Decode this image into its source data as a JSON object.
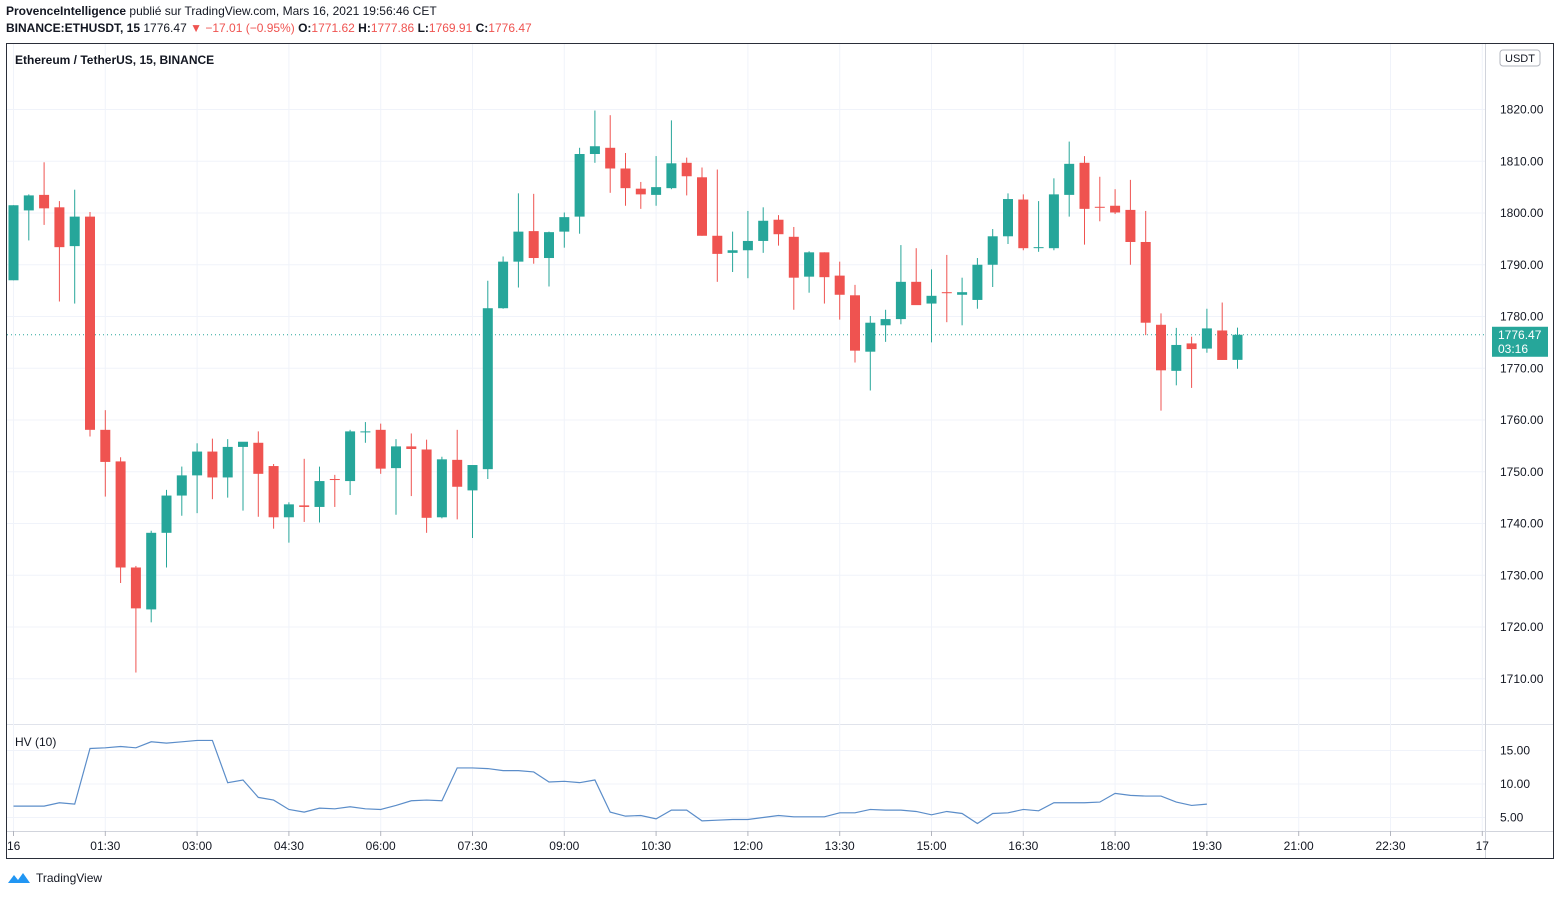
{
  "header": {
    "author": "ProvenceIntelligence",
    "published": "publié sur TradingView.com, Mars 16, 2021 19:56:46 CET",
    "symbol": "BINANCE:ETHUSDT, 15",
    "last": "1776.47",
    "change": "−17.01 (−0.95%)",
    "o_label": "O:",
    "o_val": "1771.62",
    "h_label": "H:",
    "h_val": "1777.86",
    "l_label": "L:",
    "l_val": "1769.91",
    "c_label": "C:",
    "c_val": "1776.47"
  },
  "chart": {
    "title": "Ethereum / TetherUS, 15, BINANCE",
    "currency_label": "USDT",
    "price_tag": "1776.47",
    "countdown": "03:16",
    "indicator_label": "HV (10)"
  },
  "footer": {
    "brand": "TradingView"
  },
  "colors": {
    "up": "#26a69a",
    "down": "#ef5350",
    "hv": "#5b8dc9",
    "grid": "#f0f3fa",
    "tag": "#26a69a"
  },
  "chart_data": {
    "type": "candlestick",
    "title": "Ethereum / TetherUS, 15, BINANCE",
    "price_axis_ticks": [
      1710,
      1720,
      1730,
      1740,
      1750,
      1760,
      1770,
      1780,
      1790,
      1800,
      1810,
      1820
    ],
    "price_axis_labels": [
      "1710.00",
      "1720.00",
      "1730.00",
      "1740.00",
      "1750.00",
      "1760.00",
      "1770.00",
      "1780.00",
      "1790.00",
      "1800.00",
      "1810.00",
      "1820.00"
    ],
    "time_axis_labels": [
      "16",
      "01:30",
      "03:00",
      "04:30",
      "06:00",
      "07:30",
      "09:00",
      "10:30",
      "12:00",
      "13:30",
      "15:00",
      "16:30",
      "18:00",
      "19:30",
      "21:00",
      "22:30",
      "17"
    ],
    "last_price": 1776.47,
    "candles": [
      [
        1787,
        1801.5,
        1787,
        1801.5
      ],
      [
        1800.5,
        1803.6,
        1794.7,
        1803.4
      ],
      [
        1803.5,
        1809.8,
        1797.7,
        1800.9
      ],
      [
        1801.1,
        1802.3,
        1782.9,
        1793.4
      ],
      [
        1793.6,
        1804.5,
        1782.5,
        1799.3
      ],
      [
        1799.3,
        1800.2,
        1756.8,
        1758.1
      ],
      [
        1758.1,
        1761.9,
        1745.2,
        1751.9
      ],
      [
        1752,
        1752.8,
        1728.5,
        1731.5
      ],
      [
        1731.5,
        1731.8,
        1711.2,
        1723.6
      ],
      [
        1723.4,
        1738.6,
        1720.9,
        1738.2
      ],
      [
        1738.2,
        1746.5,
        1731.5,
        1745.4
      ],
      [
        1745.4,
        1751,
        1741.5,
        1749.3
      ],
      [
        1749.3,
        1755.5,
        1742,
        1753.9
      ],
      [
        1753.9,
        1756.4,
        1744.7,
        1748.9
      ],
      [
        1748.9,
        1756.3,
        1745,
        1754.8
      ],
      [
        1754.8,
        1755.4,
        1742.5,
        1755.8
      ],
      [
        1755.6,
        1757.8,
        1741.3,
        1749.6
      ],
      [
        1751.1,
        1751.5,
        1739,
        1741.2
      ],
      [
        1741.2,
        1744.1,
        1736.3,
        1743.7
      ],
      [
        1743.5,
        1752.5,
        1740.3,
        1743.2
      ],
      [
        1743.2,
        1751,
        1740.2,
        1748.2
      ],
      [
        1748.6,
        1749.4,
        1743.2,
        1748.4
      ],
      [
        1748.2,
        1758.1,
        1745.5,
        1757.8
      ],
      [
        1757.8,
        1759.6,
        1755.6,
        1757.8
      ],
      [
        1758.1,
        1759.3,
        1749.6,
        1750.6
      ],
      [
        1750.7,
        1756.3,
        1741.7,
        1754.9
      ],
      [
        1754.9,
        1757.4,
        1745.3,
        1754.4
      ],
      [
        1754.3,
        1756.2,
        1738.2,
        1741.1
      ],
      [
        1741.2,
        1752.9,
        1741,
        1752.4
      ],
      [
        1752.3,
        1758.1,
        1740.8,
        1747.1
      ],
      [
        1746.4,
        1750.5,
        1737.2,
        1751.3
      ],
      [
        1750.5,
        1786.9,
        1748.6,
        1781.6
      ],
      [
        1781.6,
        1791.6,
        1781.5,
        1790.6
      ],
      [
        1790.6,
        1803.8,
        1785.6,
        1796.4
      ],
      [
        1796.5,
        1803.7,
        1790.2,
        1791.3
      ],
      [
        1791.3,
        1796.4,
        1785.8,
        1796.3
      ],
      [
        1796.4,
        1800.1,
        1793.3,
        1799.2
      ],
      [
        1799.3,
        1812.6,
        1796,
        1811.4
      ],
      [
        1811.4,
        1819.8,
        1809.7,
        1812.9
      ],
      [
        1812.6,
        1818.9,
        1803.9,
        1808.6
      ],
      [
        1808.6,
        1811.6,
        1801.4,
        1804.8
      ],
      [
        1804.7,
        1806,
        1800.8,
        1803.6
      ],
      [
        1803.5,
        1811,
        1801.4,
        1805
      ],
      [
        1804.8,
        1817.9,
        1804.6,
        1809.6
      ],
      [
        1809.7,
        1810.7,
        1803.4,
        1807.1
      ],
      [
        1806.9,
        1808.8,
        1795.6,
        1795.6
      ],
      [
        1795.6,
        1808.4,
        1786.7,
        1792.1
      ],
      [
        1792.3,
        1796.4,
        1788.6,
        1792.8
      ],
      [
        1792.8,
        1800.4,
        1787.4,
        1794.6
      ],
      [
        1794.6,
        1801.1,
        1792.3,
        1798.5
      ],
      [
        1798.7,
        1799.6,
        1793.7,
        1795.9
      ],
      [
        1795.4,
        1797.3,
        1781.3,
        1787.5
      ],
      [
        1787.7,
        1792.6,
        1784.6,
        1792.4
      ],
      [
        1792.4,
        1792.4,
        1782.5,
        1787.6
      ],
      [
        1787.9,
        1790.6,
        1779.4,
        1784.2
      ],
      [
        1784.1,
        1786.1,
        1771.1,
        1773.4
      ],
      [
        1773.2,
        1780.1,
        1765.7,
        1778.8
      ],
      [
        1778.3,
        1781.3,
        1775.1,
        1779.5
      ],
      [
        1779.5,
        1793.8,
        1778.5,
        1786.7
      ],
      [
        1786.7,
        1793.2,
        1782.3,
        1782.2
      ],
      [
        1782.5,
        1789.1,
        1775,
        1784
      ],
      [
        1784.7,
        1791.9,
        1778.9,
        1784.5
      ],
      [
        1784.2,
        1787.5,
        1778.3,
        1784.7
      ],
      [
        1783.2,
        1791.3,
        1781.5,
        1790
      ],
      [
        1790,
        1796.9,
        1785.7,
        1795.5
      ],
      [
        1795.5,
        1803.8,
        1794,
        1802.7
      ],
      [
        1802.6,
        1803.6,
        1792.8,
        1793.2
      ],
      [
        1793.3,
        1802.3,
        1792.5,
        1793.4
      ],
      [
        1793.2,
        1806.7,
        1792.8,
        1803.6
      ],
      [
        1803.5,
        1813.8,
        1799.3,
        1809.5
      ],
      [
        1809.7,
        1811,
        1793.9,
        1800.8
      ],
      [
        1801.2,
        1807,
        1798.4,
        1801.1
      ],
      [
        1801.4,
        1804.6,
        1799.8,
        1800.1
      ],
      [
        1800.6,
        1806.4,
        1790,
        1794.4
      ],
      [
        1794.4,
        1800.4,
        1776.4,
        1778.8
      ],
      [
        1778.4,
        1780.6,
        1761.8,
        1769.6
      ],
      [
        1769.5,
        1777.8,
        1766.7,
        1774.5
      ],
      [
        1774.8,
        1776.1,
        1766.2,
        1773.7
      ],
      [
        1773.8,
        1781.5,
        1773,
        1777.7
      ],
      [
        1777.3,
        1782.7,
        1771.6,
        1771.6
      ],
      [
        1771.62,
        1777.86,
        1769.91,
        1776.47
      ]
    ],
    "hv_axis_labels": [
      "5.00",
      "10.00",
      "15.00"
    ],
    "hv_ticks": [
      5,
      10,
      15
    ],
    "hv_values": [
      6.7,
      6.7,
      6.7,
      7.2,
      7,
      15.3,
      15.4,
      15.6,
      15.4,
      16.3,
      16.1,
      16.3,
      16.5,
      16.5,
      10.2,
      10.6,
      8,
      7.6,
      6.2,
      5.8,
      6.4,
      6.3,
      6.6,
      6.3,
      6.2,
      6.8,
      7.5,
      7.6,
      7.5,
      12.4,
      12.4,
      12.3,
      12,
      12,
      11.8,
      10.3,
      10.4,
      10.2,
      10.6,
      5.8,
      5.2,
      5.3,
      4.8,
      6.1,
      6.1,
      4.5,
      4.6,
      4.7,
      4.7,
      5,
      5.3,
      5.1,
      5.1,
      5.1,
      5.7,
      5.7,
      6.2,
      6.1,
      6.1,
      5.9,
      5.4,
      5.9,
      5.6,
      4.1,
      5.6,
      5.7,
      6.2,
      6,
      7.2,
      7.2,
      7.2,
      7.3,
      8.6,
      8.3,
      8.2,
      8.2,
      7.3,
      6.8,
      7
    ]
  }
}
